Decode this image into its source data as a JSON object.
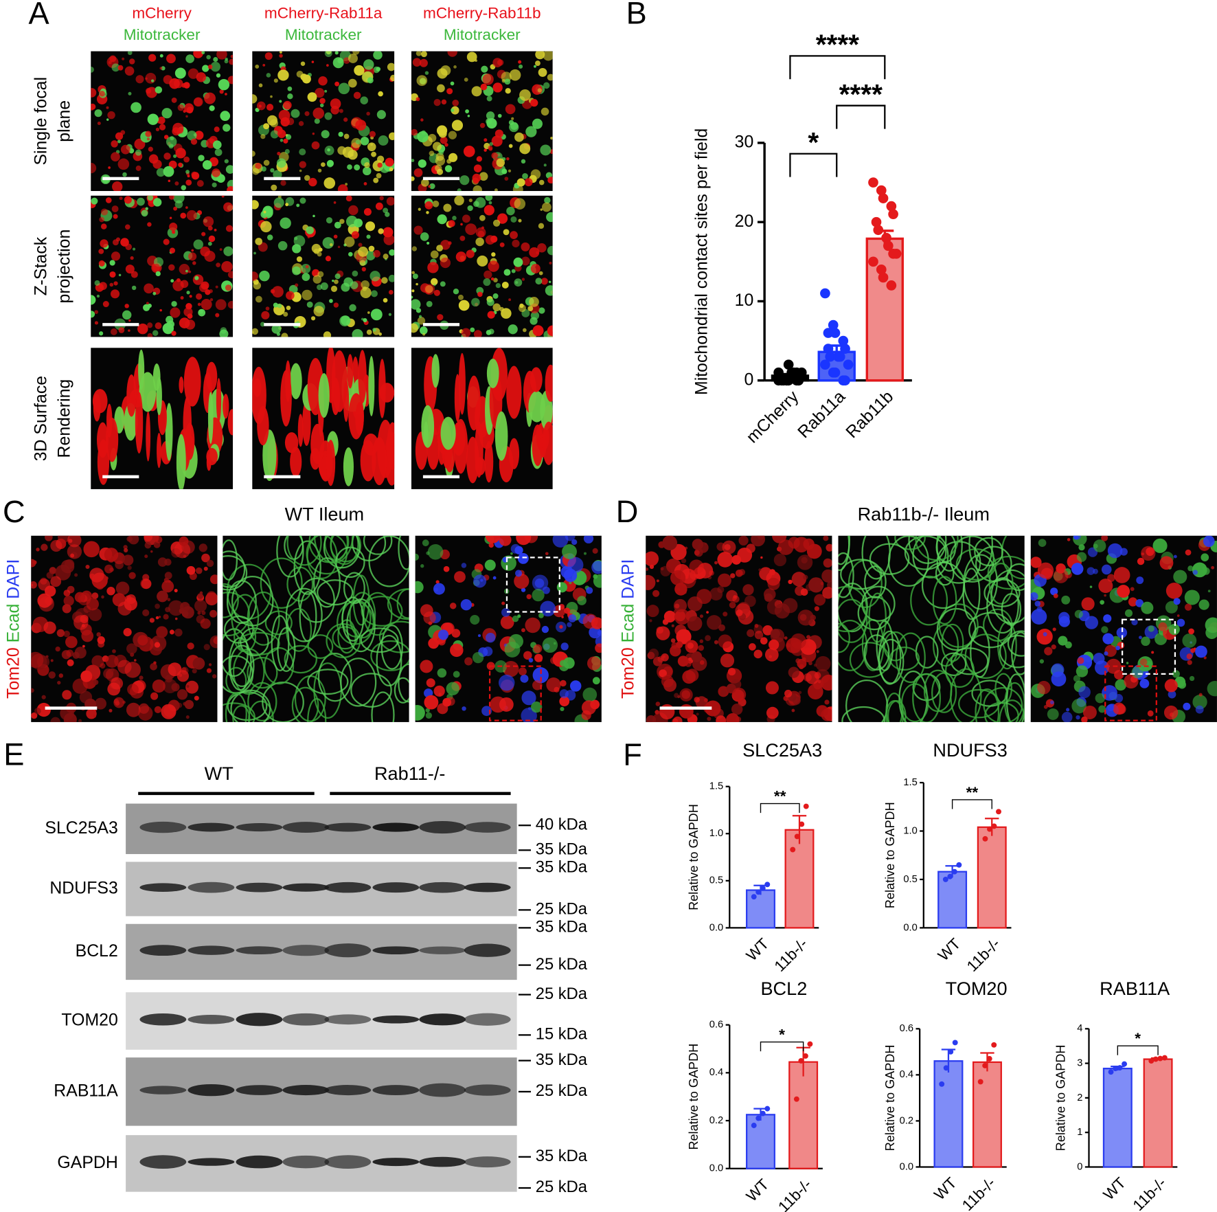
{
  "panel_labels": [
    "A",
    "B",
    "C",
    "D",
    "E",
    "F"
  ],
  "panel_a": {
    "columns": [
      {
        "construct": "mCherry",
        "stain": "Mitotracker"
      },
      {
        "construct": "mCherry-Rab11a",
        "stain": "Mitotracker"
      },
      {
        "construct": "mCherry-Rab11b",
        "stain": "Mitotracker"
      }
    ],
    "rows": [
      [
        "Single focal",
        "plane"
      ],
      [
        "Z-Stack",
        "projection"
      ],
      [
        "3D Surface",
        "Rendering"
      ]
    ]
  },
  "panel_c": {
    "title": "WT Ileum"
  },
  "panel_d": {
    "title": "Rab11b-/- Ileum"
  },
  "stain_label": [
    "Tom20",
    "Ecad",
    "DAPI"
  ],
  "panel_e": {
    "groups": [
      "WT",
      "Rab11-/-"
    ],
    "blots": [
      {
        "name": "SLC25A3",
        "markers": [
          "40 kDa",
          "35 kDa"
        ]
      },
      {
        "name": "NDUFS3",
        "markers": [
          "35 kDa",
          "25 kDa"
        ]
      },
      {
        "name": "BCL2",
        "markers": [
          "35 kDa",
          "25 kDa"
        ]
      },
      {
        "name": "TOM20",
        "markers": [
          "25 kDa",
          "15 kDa"
        ]
      },
      {
        "name": "RAB11A",
        "markers": [
          "35 kDa",
          "25 kDa"
        ]
      },
      {
        "name": "GAPDH",
        "markers": [
          "35 kDa",
          "25 kDa"
        ]
      }
    ]
  },
  "chart_data": [
    {
      "type": "bar",
      "ylabel": "Mitochondrial contact sites per field",
      "categories": [
        "mCherry",
        "Rab11a",
        "Rab11b"
      ],
      "ylim": [
        0,
        30
      ],
      "yticks": [
        0,
        10,
        20,
        30
      ],
      "values": [
        0.6,
        3.6,
        17.9
      ],
      "errors": [
        0.2,
        0.8,
        1.0
      ],
      "points": [
        [
          0,
          0,
          0,
          0,
          0,
          0,
          0,
          1,
          1,
          1,
          1,
          0,
          2,
          1,
          0
        ],
        [
          11,
          7,
          6,
          5,
          4,
          4,
          3,
          3,
          3,
          2,
          2,
          1,
          1,
          0,
          0,
          6
        ],
        [
          25,
          24,
          23,
          22,
          21,
          20,
          19,
          18,
          17,
          16,
          15,
          14,
          13,
          12,
          16
        ]
      ],
      "colors": [
        "#000000",
        "#1a35ff",
        "#e41a1c"
      ],
      "fills": [
        "#000000",
        "#4d63f7",
        "#f08a8a"
      ],
      "comparisons": [
        {
          "pair": [
            "mCherry",
            "Rab11b"
          ],
          "label": "****"
        },
        {
          "pair": [
            "Rab11a",
            "Rab11b"
          ],
          "label": "****"
        },
        {
          "pair": [
            "mCherry",
            "Rab11a"
          ],
          "label": "*"
        }
      ]
    },
    {
      "type": "bar",
      "title": "SLC25A3",
      "ylabel": "Relative to GAPDH",
      "categories": [
        "WT",
        "11b-/-"
      ],
      "ylim": [
        0,
        1.5
      ],
      "yticks": [
        {
          "value": 0,
          "label": "0.0"
        },
        0.5,
        {
          "value": 1,
          "label": "1.0"
        },
        1.5
      ],
      "values": [
        0.4,
        1.04
      ],
      "errors": [
        0.05,
        0.15
      ],
      "points": [
        [
          0.33,
          0.38,
          0.42,
          0.46
        ],
        [
          0.83,
          0.97,
          1.1,
          1.29
        ]
      ],
      "colors": [
        "#2a3cf0",
        "#e31a1c"
      ],
      "fills": [
        "#7f8cf7",
        "#f08888"
      ],
      "comparisons": [
        {
          "pair": [
            "WT",
            "11b-/-"
          ],
          "label": "**"
        }
      ]
    },
    {
      "type": "bar",
      "title": "NDUFS3",
      "ylabel": "Relative to GAPDH",
      "categories": [
        "WT",
        "11b-/-"
      ],
      "ylim": [
        0,
        1.5
      ],
      "yticks": [
        {
          "value": 0,
          "label": "0.0"
        },
        0.5,
        {
          "value": 1,
          "label": "1.0"
        },
        1.5
      ],
      "values": [
        0.58,
        1.04
      ],
      "errors": [
        0.06,
        0.09
      ],
      "points": [
        [
          0.5,
          0.53,
          0.58,
          0.65
        ],
        [
          0.92,
          1.02,
          1.05,
          1.2
        ]
      ],
      "colors": [
        "#2a3cf0",
        "#e31a1c"
      ],
      "fills": [
        "#7f8cf7",
        "#f08888"
      ],
      "comparisons": [
        {
          "pair": [
            "WT",
            "11b-/-"
          ],
          "label": "**"
        }
      ]
    },
    {
      "type": "bar",
      "title": "BCL2",
      "ylabel": "Relative to GAPDH",
      "categories": [
        "WT",
        "11b-/-"
      ],
      "ylim": [
        0,
        0.6
      ],
      "yticks": [
        {
          "value": 0,
          "label": "0.0"
        },
        0.2,
        0.4,
        0.6
      ],
      "values": [
        0.225,
        0.445
      ],
      "errors": [
        0.025,
        0.06
      ],
      "points": [
        [
          0.18,
          0.21,
          0.23,
          0.25
        ],
        [
          0.29,
          0.45,
          0.47,
          0.52
        ]
      ],
      "colors": [
        "#2a3cf0",
        "#e31a1c"
      ],
      "fills": [
        "#7f8cf7",
        "#f08888"
      ],
      "comparisons": [
        {
          "pair": [
            "WT",
            "11b-/-"
          ],
          "label": "*"
        }
      ]
    },
    {
      "type": "bar",
      "title": "TOM20",
      "ylabel": "Relative to GAPDH",
      "categories": [
        "WT",
        "11b-/-"
      ],
      "ylim": [
        0,
        0.6
      ],
      "yticks": [
        {
          "value": 0,
          "label": "0.0"
        },
        0.2,
        0.4,
        0.6
      ],
      "values": [
        0.46,
        0.455
      ],
      "errors": [
        0.05,
        0.04
      ],
      "points": [
        [
          0.36,
          0.43,
          0.5,
          0.54
        ],
        [
          0.37,
          0.44,
          0.47,
          0.53
        ]
      ],
      "colors": [
        "#2a3cf0",
        "#e31a1c"
      ],
      "fills": [
        "#7f8cf7",
        "#f08888"
      ],
      "comparisons": []
    },
    {
      "type": "bar",
      "title": "RAB11A",
      "ylabel": "Relative to GAPDH",
      "categories": [
        "WT",
        "11b-/-"
      ],
      "ylim": [
        0,
        4
      ],
      "yticks": [
        0,
        1,
        2,
        3,
        4
      ],
      "values": [
        2.85,
        3.12
      ],
      "errors": [
        0.06,
        0.03
      ],
      "points": [
        [
          2.75,
          2.85,
          2.87,
          2.98
        ],
        [
          3.07,
          3.12,
          3.14,
          3.16
        ]
      ],
      "colors": [
        "#2a3cf0",
        "#e31a1c"
      ],
      "fills": [
        "#7f8cf7",
        "#f08888"
      ],
      "comparisons": [
        {
          "pair": [
            "WT",
            "11b-/-"
          ],
          "label": "*"
        }
      ]
    }
  ]
}
